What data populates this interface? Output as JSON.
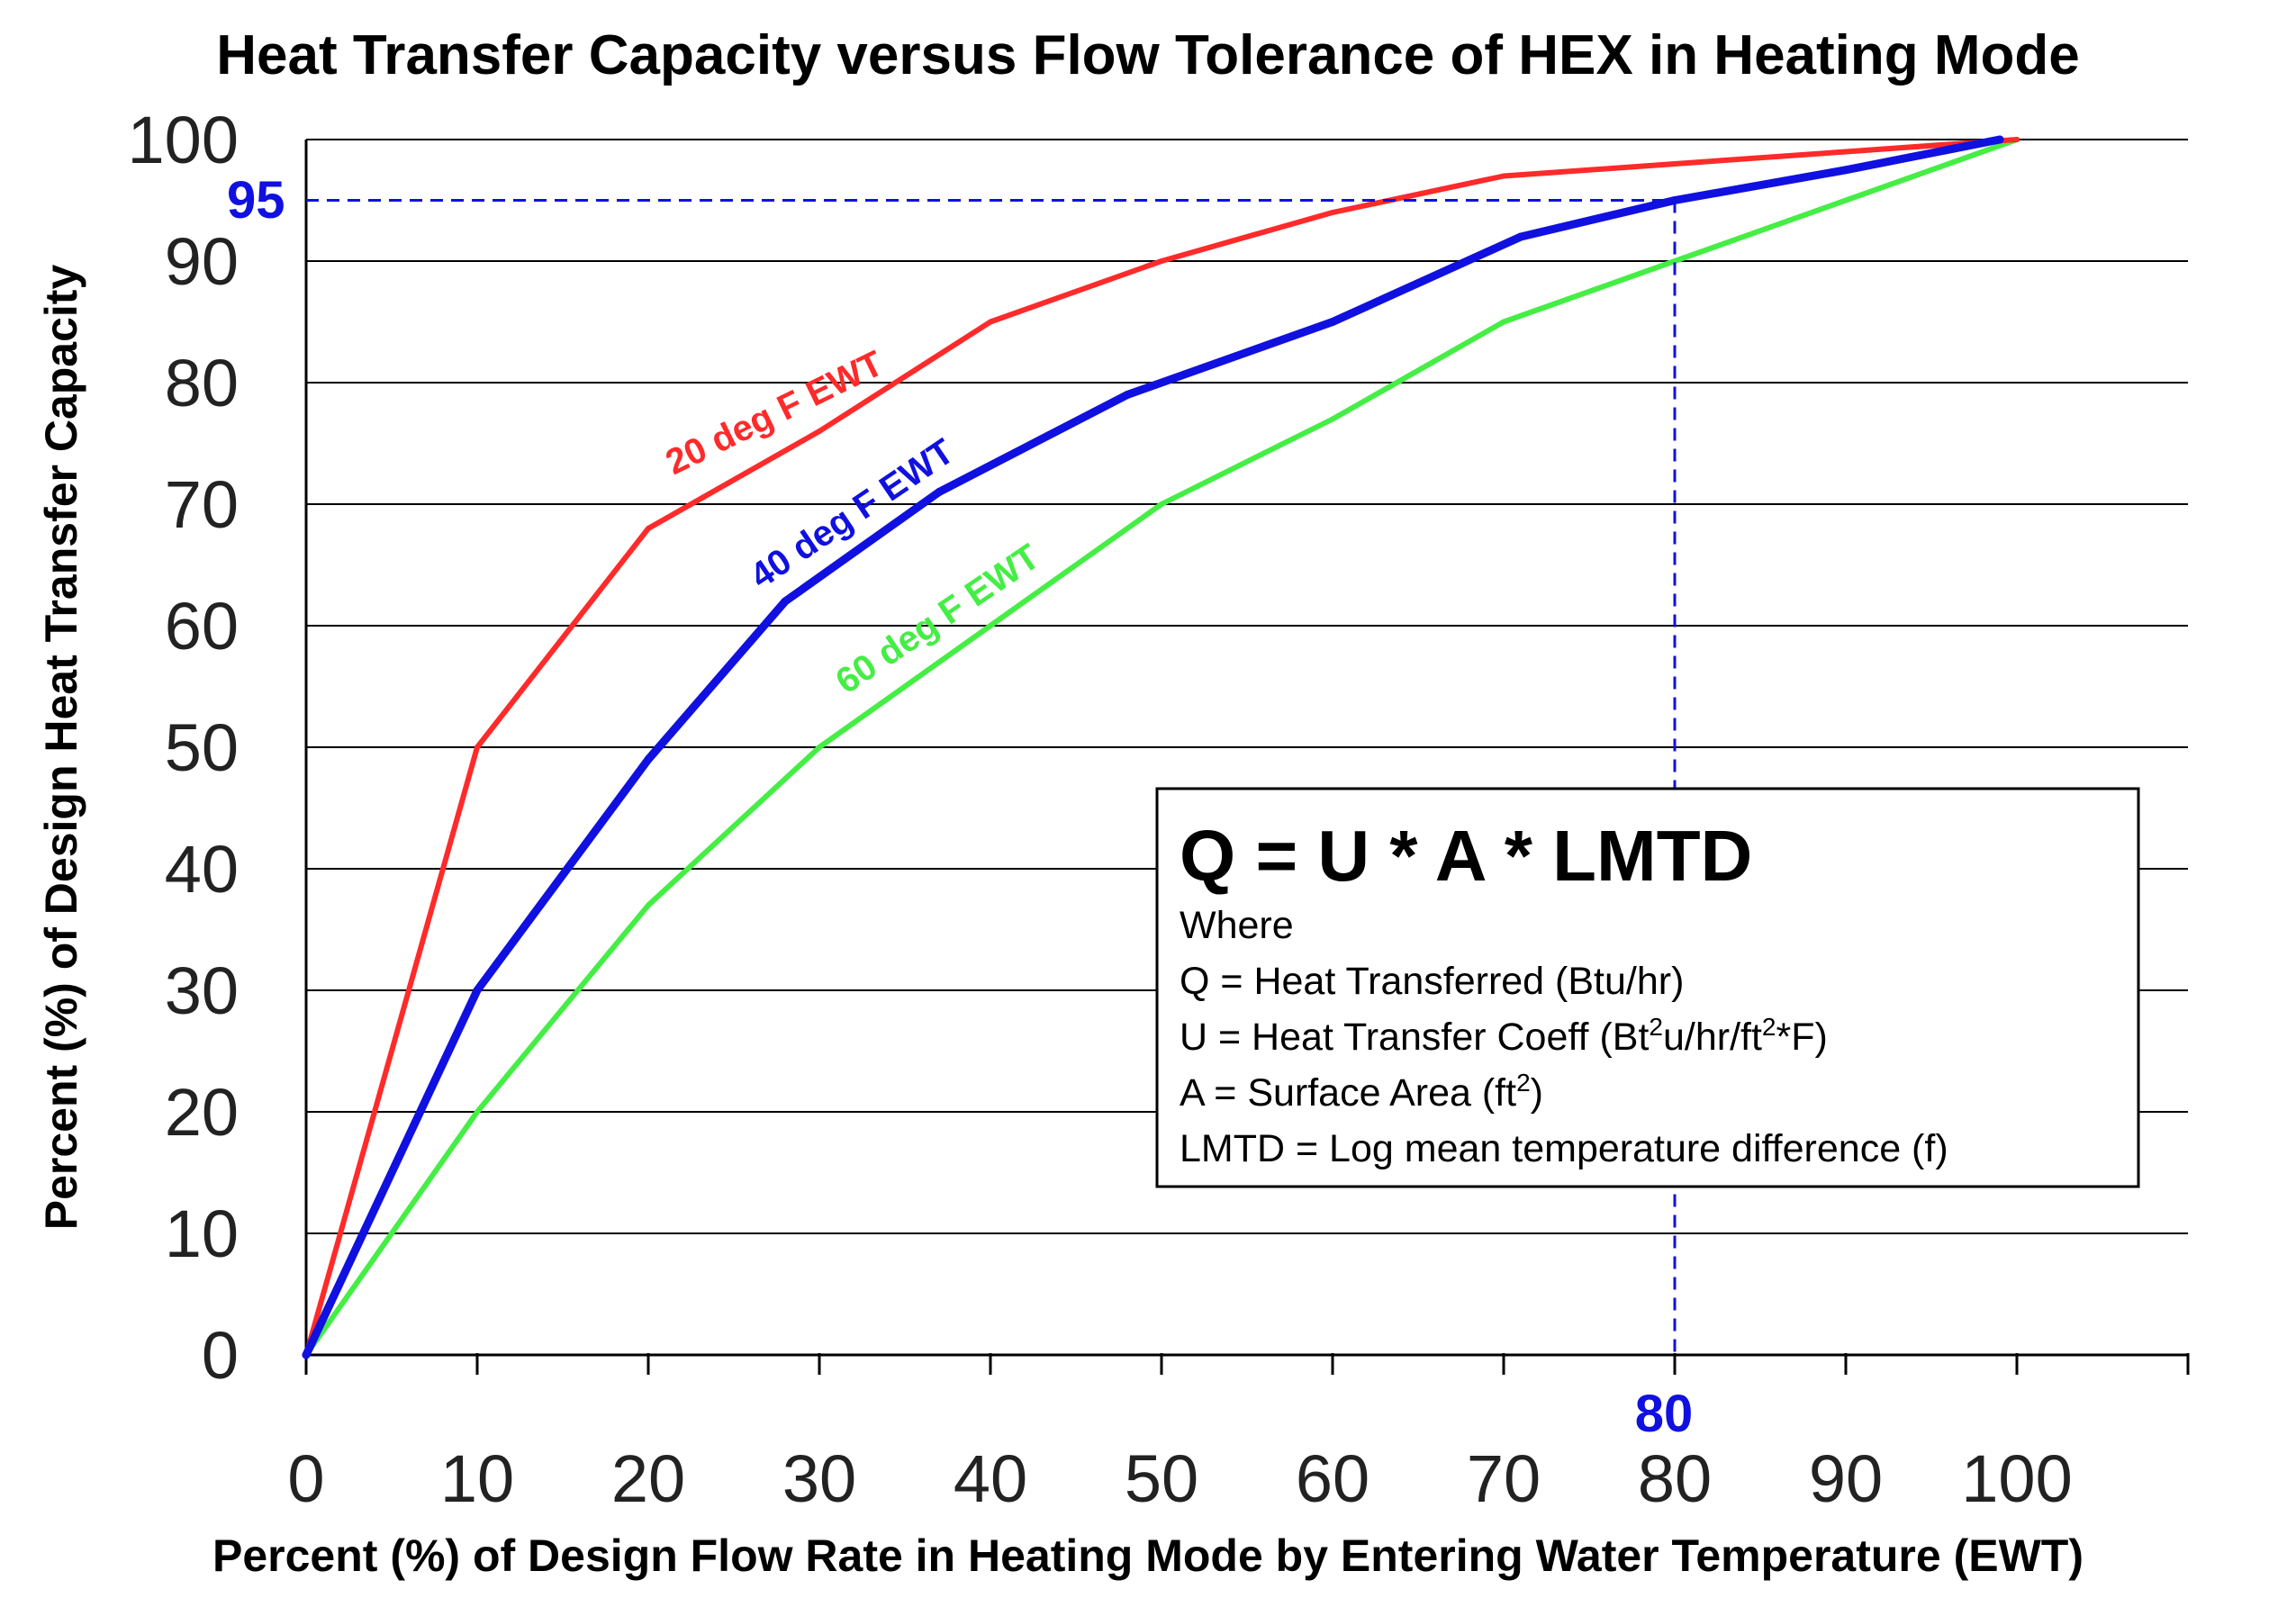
{
  "chart_data": {
    "type": "line",
    "title": "Heat Transfer Capacity versus Flow Tolerance of HEX in Heating Mode",
    "xlabel": "Percent (%) of Design Flow Rate in Heating Mode by Entering Water Temperature (EWT)",
    "ylabel": "Percent (%) of Design Heat Transfer Capacity",
    "xlim": [
      0,
      110
    ],
    "ylim": [
      0,
      100
    ],
    "x_ticks": [
      0,
      10,
      20,
      30,
      40,
      50,
      60,
      70,
      80,
      90,
      100
    ],
    "y_ticks": [
      0,
      10,
      20,
      30,
      40,
      50,
      60,
      70,
      80,
      90,
      100
    ],
    "grid": "horizontal",
    "series": [
      {
        "name": "20 deg F EWT",
        "color": "#ff2a2a",
        "x": [
          0,
          10,
          20,
          30,
          40,
          50,
          60,
          70,
          80,
          90,
          100
        ],
        "y": [
          0,
          50,
          68,
          76,
          85,
          90,
          94,
          97,
          98,
          99,
          100
        ]
      },
      {
        "name": "40 deg F EWT",
        "color": "#1010e0",
        "x": [
          0,
          10,
          20,
          28,
          37,
          48,
          60,
          71,
          80,
          90,
          99
        ],
        "y": [
          0,
          30,
          49,
          62,
          71,
          79,
          85,
          92,
          95,
          97.5,
          100
        ]
      },
      {
        "name": "60 deg F EWT",
        "color": "#44ee44",
        "x": [
          0,
          10,
          20,
          30,
          40,
          50,
          60,
          70,
          80,
          90,
          100
        ],
        "y": [
          0,
          20,
          37,
          50,
          60,
          70,
          77,
          85,
          90,
          95,
          100
        ]
      }
    ],
    "reference_lines": {
      "color": "#1010e0",
      "x_value": 80,
      "y_value": 95,
      "x_label": "80",
      "y_label": "95"
    },
    "annotation_box": {
      "equation": "Q = U * A * LMTD",
      "where": "Where",
      "line_q": "Q = Heat Transferred (Btu/hr)",
      "line_u_a": "U = Heat Transfer Coeff (Bt",
      "line_u_sup1": "2",
      "line_u_b": "u/hr/ft",
      "line_u_sup2": "2",
      "line_u_c": "*F)",
      "line_a_a": "A = Surface Area (ft",
      "line_a_sup": "2",
      "line_a_b": ")",
      "line_lmtd": "LMTD = Log mean temperature difference (f)"
    }
  }
}
